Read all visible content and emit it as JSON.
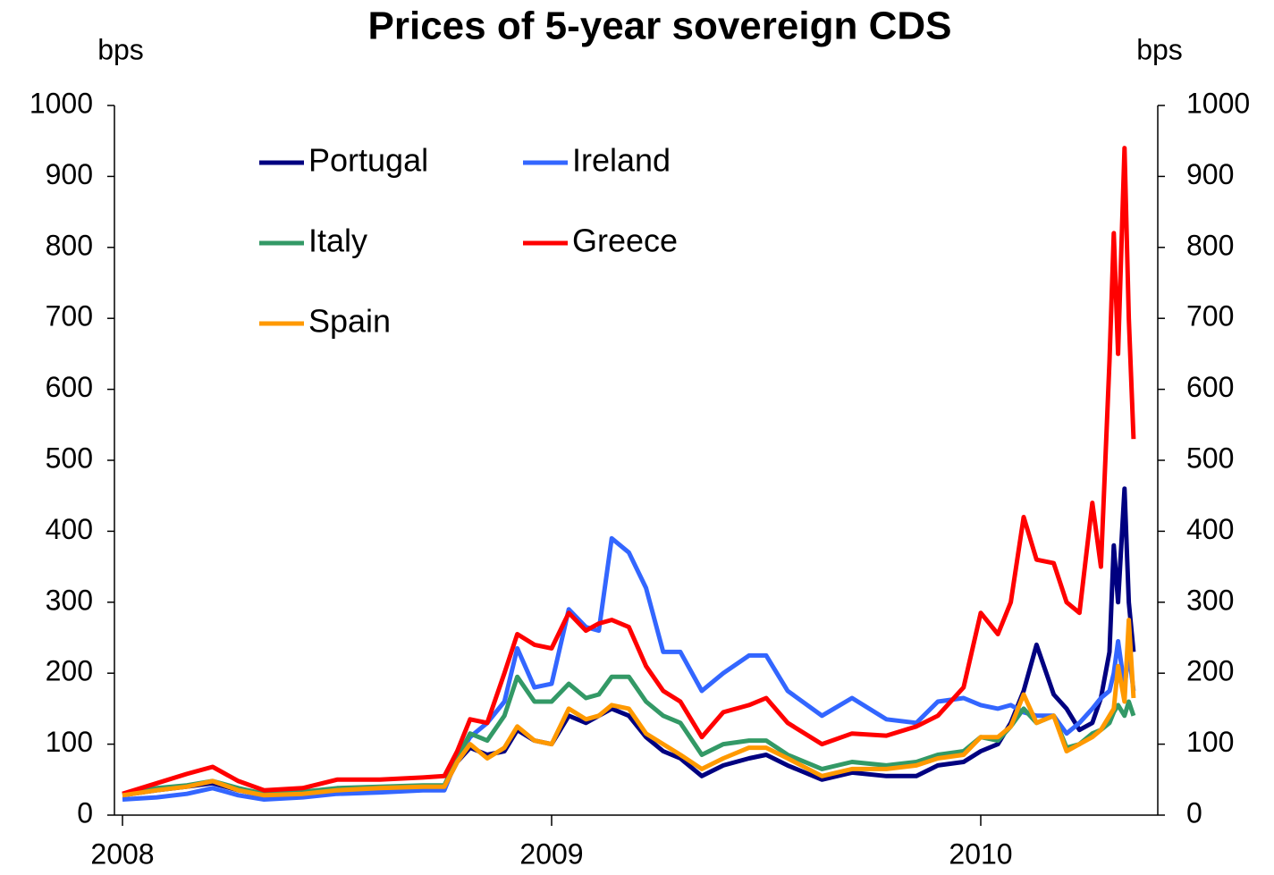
{
  "chart_data": {
    "type": "line",
    "title": "Prices of 5-year sovereign CDS",
    "y_label": "bps",
    "y2_label": "bps",
    "x": [
      2008.0,
      2008.08,
      2008.15,
      2008.21,
      2008.27,
      2008.33,
      2008.42,
      2008.5,
      2008.6,
      2008.7,
      2008.75,
      2008.78,
      2008.81,
      2008.85,
      2008.89,
      2008.92,
      2008.96,
      2009.0,
      2009.04,
      2009.08,
      2009.11,
      2009.14,
      2009.18,
      2009.22,
      2009.26,
      2009.3,
      2009.35,
      2009.4,
      2009.46,
      2009.5,
      2009.55,
      2009.63,
      2009.7,
      2009.78,
      2009.85,
      2009.9,
      2009.96,
      2010.0,
      2010.04,
      2010.07,
      2010.1,
      2010.13,
      2010.17,
      2010.2,
      2010.23,
      2010.26,
      2010.28,
      2010.3,
      2010.31,
      2010.32,
      2010.335,
      2010.345,
      2010.356
    ],
    "series": [
      {
        "name": "Portugal",
        "color": "#000080",
        "values": [
          28,
          35,
          40,
          45,
          35,
          28,
          30,
          35,
          38,
          40,
          40,
          75,
          95,
          85,
          90,
          120,
          105,
          100,
          140,
          130,
          140,
          150,
          140,
          110,
          90,
          80,
          55,
          70,
          80,
          85,
          70,
          50,
          60,
          55,
          55,
          70,
          75,
          90,
          100,
          130,
          175,
          240,
          170,
          150,
          120,
          130,
          165,
          230,
          380,
          300,
          460,
          300,
          230
        ]
      },
      {
        "name": "Ireland",
        "color": "#3366ff",
        "values": [
          22,
          25,
          30,
          38,
          28,
          22,
          25,
          30,
          32,
          35,
          35,
          80,
          110,
          130,
          160,
          235,
          180,
          185,
          290,
          265,
          260,
          390,
          370,
          320,
          230,
          230,
          175,
          200,
          225,
          225,
          175,
          140,
          165,
          135,
          130,
          160,
          165,
          155,
          150,
          155,
          145,
          140,
          140,
          115,
          130,
          150,
          165,
          175,
          200,
          245,
          180,
          230,
          175
        ]
      },
      {
        "name": "Italy",
        "color": "#339966",
        "values": [
          30,
          38,
          42,
          48,
          38,
          30,
          33,
          38,
          40,
          42,
          42,
          80,
          115,
          105,
          140,
          195,
          160,
          160,
          185,
          165,
          170,
          195,
          195,
          160,
          140,
          130,
          85,
          100,
          105,
          105,
          85,
          65,
          75,
          70,
          75,
          85,
          90,
          110,
          105,
          125,
          150,
          130,
          140,
          95,
          100,
          115,
          120,
          130,
          145,
          155,
          140,
          160,
          140
        ]
      },
      {
        "name": "Greece",
        "color": "#ff0000",
        "values": [
          30,
          45,
          58,
          68,
          48,
          35,
          38,
          50,
          50,
          53,
          55,
          90,
          135,
          130,
          200,
          255,
          240,
          235,
          285,
          260,
          270,
          275,
          265,
          210,
          175,
          160,
          110,
          145,
          155,
          165,
          130,
          100,
          115,
          112,
          125,
          140,
          180,
          285,
          255,
          300,
          420,
          360,
          355,
          300,
          285,
          440,
          350,
          640,
          820,
          650,
          940,
          700,
          530
        ]
      },
      {
        "name": "Spain",
        "color": "#ff9900",
        "values": [
          28,
          35,
          40,
          48,
          35,
          28,
          30,
          35,
          38,
          40,
          40,
          75,
          100,
          80,
          95,
          125,
          105,
          100,
          150,
          135,
          140,
          155,
          150,
          115,
          100,
          85,
          65,
          80,
          95,
          95,
          80,
          55,
          65,
          65,
          70,
          80,
          85,
          110,
          110,
          125,
          170,
          130,
          140,
          90,
          100,
          110,
          120,
          140,
          150,
          210,
          160,
          275,
          165
        ]
      }
    ],
    "xlim": [
      2008,
      2010.4125
    ],
    "xticks": [
      2008,
      2009,
      2010
    ],
    "ylim": [
      0,
      1000
    ],
    "yticks": [
      0,
      100,
      200,
      300,
      400,
      500,
      600,
      700,
      800,
      900,
      1000
    ],
    "y2lim": [
      0,
      1000
    ],
    "y2ticks": [
      0,
      100,
      200,
      300,
      400,
      500,
      600,
      700,
      800,
      900,
      1000
    ],
    "legend": "upper left",
    "grid": false
  }
}
